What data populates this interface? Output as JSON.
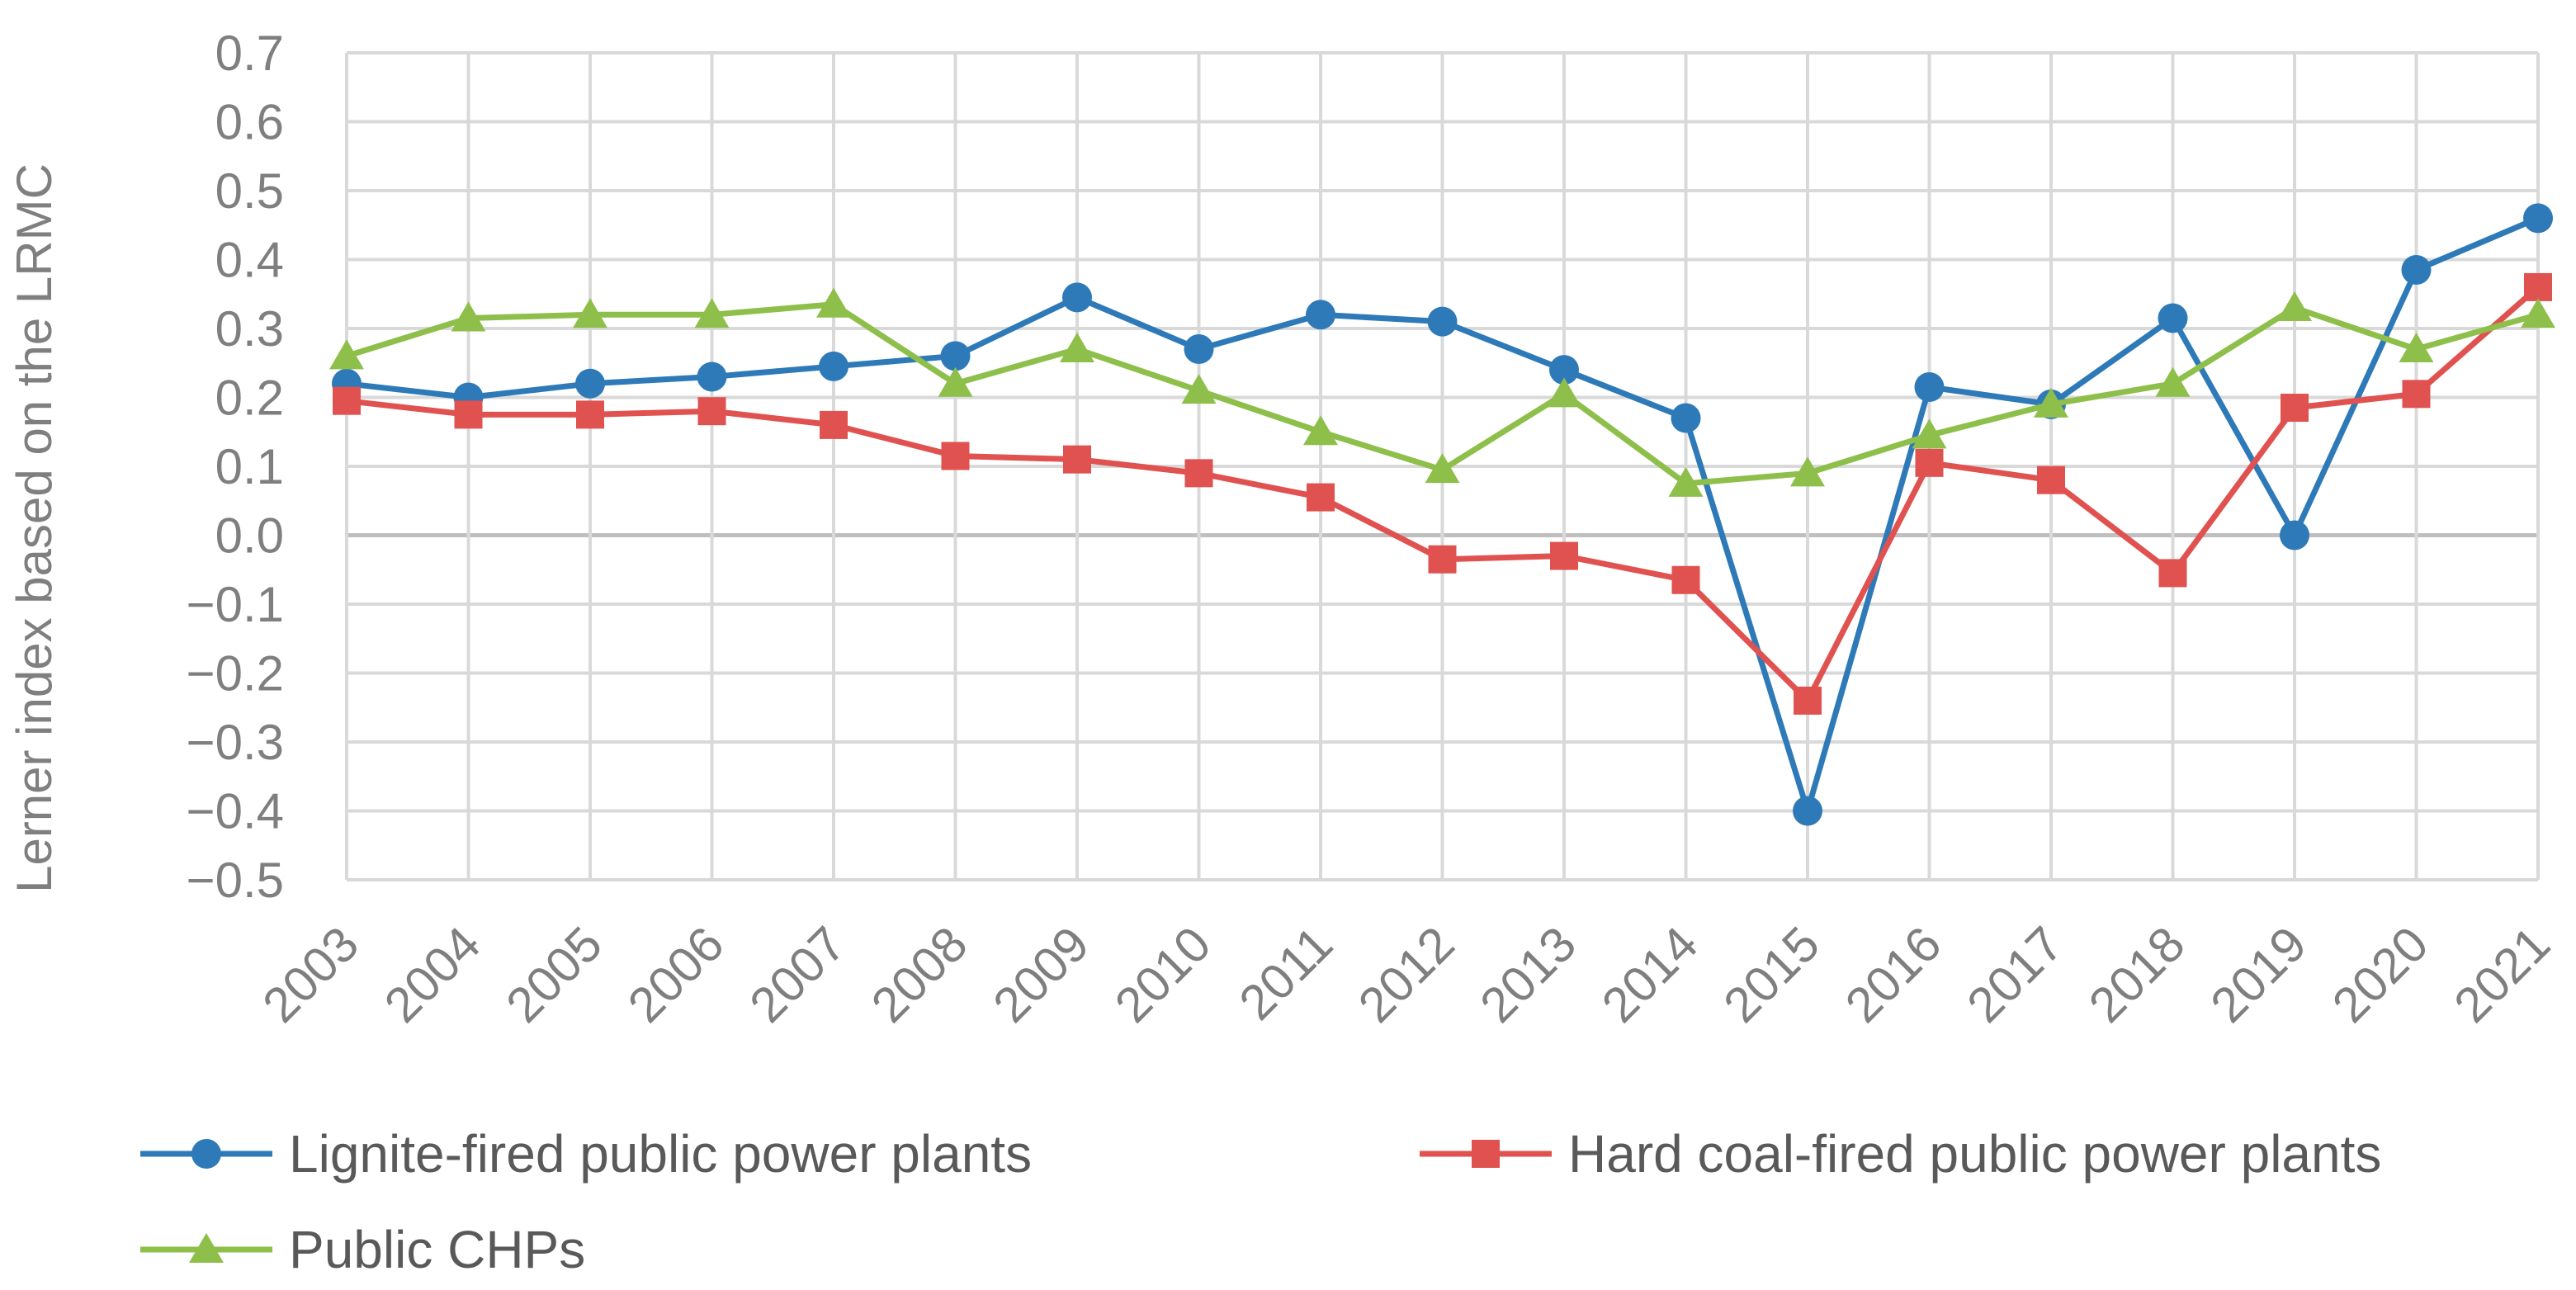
{
  "chart_data": {
    "type": "line",
    "title": "",
    "xlabel": "",
    "ylabel": "Lerner index based on the LRMC",
    "ylim": [
      -0.5,
      0.7
    ],
    "yticks": [
      "0.7",
      "0.6",
      "0.5",
      "0.4",
      "0.3",
      "0.2",
      "0.1",
      "0.0",
      "−0.1",
      "−0.2",
      "−0.3",
      "−0.4",
      "−0.5"
    ],
    "grid": true,
    "legend_position": "bottom",
    "categories": [
      "2003",
      "2004",
      "2005",
      "2006",
      "2007",
      "2008",
      "2009",
      "2010",
      "2011",
      "2012",
      "2013",
      "2014",
      "2015",
      "2016",
      "2017",
      "2018",
      "2019",
      "2020",
      "2021"
    ],
    "series": [
      {
        "name": "Lignite-fired public power plants",
        "color": "#2e7ab8",
        "marker": "circle",
        "values": [
          0.22,
          0.2,
          0.22,
          0.23,
          0.245,
          0.26,
          0.345,
          0.27,
          0.32,
          0.31,
          0.24,
          0.17,
          -0.4,
          0.215,
          0.19,
          0.315,
          0.0,
          0.385,
          0.46
        ]
      },
      {
        "name": "Hard coal-fired public power plants",
        "color": "#e05250",
        "marker": "square",
        "values": [
          0.195,
          0.175,
          0.175,
          0.18,
          0.16,
          0.115,
          0.11,
          0.09,
          0.055,
          -0.035,
          -0.03,
          -0.065,
          -0.24,
          0.105,
          0.08,
          -0.055,
          0.185,
          0.205,
          0.36
        ]
      },
      {
        "name": "Public CHPs",
        "color": "#8dbf4a",
        "marker": "triangle",
        "values": [
          0.26,
          0.315,
          0.32,
          0.32,
          0.335,
          0.22,
          0.27,
          0.21,
          0.15,
          0.095,
          0.205,
          0.075,
          0.09,
          0.145,
          0.19,
          0.22,
          0.33,
          0.27,
          0.32
        ]
      }
    ]
  }
}
